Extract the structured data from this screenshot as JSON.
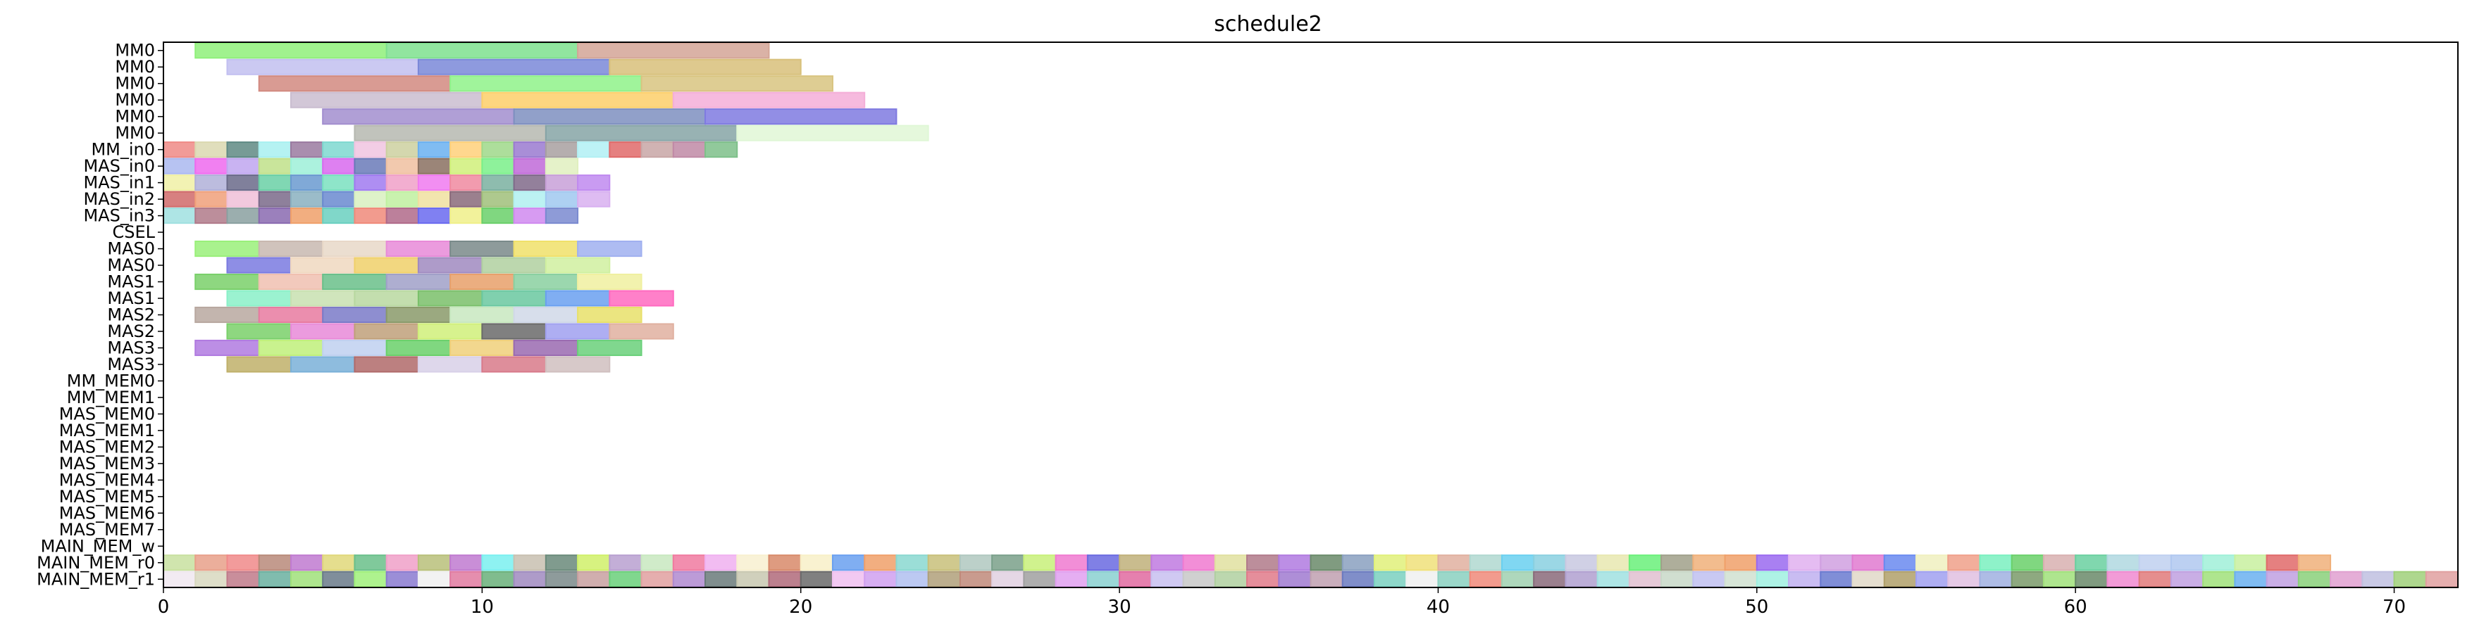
{
  "chart_data": {
    "type": "gantt",
    "title": "schedule2",
    "xlabel": "",
    "ylabel": "",
    "xlim": [
      0,
      72
    ],
    "x_ticks": [
      0,
      10,
      20,
      30,
      40,
      50,
      60,
      70
    ],
    "grid": false,
    "legend": "none",
    "rows": [
      "MM0",
      "MM0",
      "MM0",
      "MM0",
      "MM0",
      "MM0",
      "MM_in0",
      "MAS_in0",
      "MAS_in1",
      "MAS_in2",
      "MAS_in3",
      "CSEL",
      "MAS0",
      "MAS0",
      "MAS1",
      "MAS1",
      "MAS2",
      "MAS2",
      "MAS3",
      "MAS3",
      "MM_MEM0",
      "MM_MEM1",
      "MAS_MEM0",
      "MAS_MEM1",
      "MAS_MEM2",
      "MAS_MEM3",
      "MAS_MEM4",
      "MAS_MEM5",
      "MAS_MEM6",
      "MAS_MEM7",
      "MAIN_MEM_w",
      "MAIN_MEM_r0",
      "MAIN_MEM_r1"
    ],
    "bars": [
      {
        "row": 0,
        "start": 1,
        "end": 7,
        "color": "#8ff07a"
      },
      {
        "row": 0,
        "start": 7,
        "end": 13,
        "color": "#7ee08e"
      },
      {
        "row": 0,
        "start": 13,
        "end": 19,
        "color": "#d4a597"
      },
      {
        "row": 1,
        "start": 2,
        "end": 8,
        "color": "#c2bff0"
      },
      {
        "row": 1,
        "start": 8,
        "end": 14,
        "color": "#7a88d8"
      },
      {
        "row": 1,
        "start": 14,
        "end": 20,
        "color": "#d8c07a"
      },
      {
        "row": 2,
        "start": 3,
        "end": 9,
        "color": "#d28a80"
      },
      {
        "row": 2,
        "start": 9,
        "end": 15,
        "color": "#8ff28a"
      },
      {
        "row": 2,
        "start": 15,
        "end": 21,
        "color": "#d8c480"
      },
      {
        "row": 3,
        "start": 4,
        "end": 10,
        "color": "#cabdd0"
      },
      {
        "row": 3,
        "start": 10,
        "end": 16,
        "color": "#fdcf6a"
      },
      {
        "row": 3,
        "start": 16,
        "end": 22,
        "color": "#f4aed8"
      },
      {
        "row": 4,
        "start": 5,
        "end": 11,
        "color": "#a28ecf"
      },
      {
        "row": 4,
        "start": 11,
        "end": 17,
        "color": "#7e8fc0"
      },
      {
        "row": 4,
        "start": 17,
        "end": 23,
        "color": "#7f7ae0"
      },
      {
        "row": 5,
        "start": 6,
        "end": 12,
        "color": "#b6b8b0"
      },
      {
        "row": 5,
        "start": 12,
        "end": 18,
        "color": "#86a4a6"
      },
      {
        "row": 5,
        "start": 18,
        "end": 24,
        "color": "#e0f7d6"
      },
      {
        "row": 6,
        "start": 0,
        "end": 1,
        "color": "#ef8a86"
      },
      {
        "row": 6,
        "start": 1,
        "end": 2,
        "color": "#dad8b0"
      },
      {
        "row": 6,
        "start": 2,
        "end": 3,
        "color": "#5f8a84"
      },
      {
        "row": 6,
        "start": 3,
        "end": 4,
        "color": "#a8f0f0"
      },
      {
        "row": 6,
        "start": 4,
        "end": 5,
        "color": "#9a7aa0"
      },
      {
        "row": 6,
        "start": 5,
        "end": 6,
        "color": "#7ed8d0"
      },
      {
        "row": 6,
        "start": 6,
        "end": 7,
        "color": "#f0c4e0"
      },
      {
        "row": 6,
        "start": 7,
        "end": 8,
        "color": "#ccd0a0"
      },
      {
        "row": 6,
        "start": 8,
        "end": 9,
        "color": "#6ab0f0"
      },
      {
        "row": 6,
        "start": 9,
        "end": 10,
        "color": "#ffd07a"
      },
      {
        "row": 6,
        "start": 10,
        "end": 11,
        "color": "#9fd88a"
      },
      {
        "row": 6,
        "start": 11,
        "end": 12,
        "color": "#9a7ad0"
      },
      {
        "row": 6,
        "start": 12,
        "end": 13,
        "color": "#a8a0a0"
      },
      {
        "row": 6,
        "start": 13,
        "end": 14,
        "color": "#b2f0f4"
      },
      {
        "row": 6,
        "start": 14,
        "end": 15,
        "color": "#e06a6a"
      },
      {
        "row": 6,
        "start": 15,
        "end": 16,
        "color": "#c8a6a6"
      },
      {
        "row": 6,
        "start": 16,
        "end": 17,
        "color": "#c08aa6"
      },
      {
        "row": 6,
        "start": 17,
        "end": 18,
        "color": "#7ec08a"
      },
      {
        "row": 7,
        "start": 0,
        "end": 1,
        "color": "#aab8f0"
      },
      {
        "row": 7,
        "start": 1,
        "end": 2,
        "color": "#ef6aef"
      },
      {
        "row": 7,
        "start": 2,
        "end": 3,
        "color": "#c0a6f0"
      },
      {
        "row": 7,
        "start": 3,
        "end": 4,
        "color": "#c0e08a"
      },
      {
        "row": 7,
        "start": 4,
        "end": 5,
        "color": "#9ef0d8"
      },
      {
        "row": 7,
        "start": 5,
        "end": 6,
        "color": "#d86aef"
      },
      {
        "row": 7,
        "start": 6,
        "end": 7,
        "color": "#6a7ab8"
      },
      {
        "row": 7,
        "start": 7,
        "end": 8,
        "color": "#f0c0a0"
      },
      {
        "row": 7,
        "start": 8,
        "end": 9,
        "color": "#8a7060"
      },
      {
        "row": 7,
        "start": 9,
        "end": 10,
        "color": "#d0f07a"
      },
      {
        "row": 7,
        "start": 10,
        "end": 11,
        "color": "#7af08a"
      },
      {
        "row": 7,
        "start": 11,
        "end": 12,
        "color": "#c06ad8"
      },
      {
        "row": 7,
        "start": 12,
        "end": 13,
        "color": "#e0f0c0"
      },
      {
        "row": 8,
        "start": 0,
        "end": 1,
        "color": "#f0f0a6"
      },
      {
        "row": 8,
        "start": 1,
        "end": 2,
        "color": "#b0b0d8"
      },
      {
        "row": 8,
        "start": 2,
        "end": 3,
        "color": "#6a6a8a"
      },
      {
        "row": 8,
        "start": 3,
        "end": 4,
        "color": "#6ad0a6"
      },
      {
        "row": 8,
        "start": 4,
        "end": 5,
        "color": "#6a9ad0"
      },
      {
        "row": 8,
        "start": 5,
        "end": 6,
        "color": "#7ae0c0"
      },
      {
        "row": 8,
        "start": 6,
        "end": 7,
        "color": "#a07af0"
      },
      {
        "row": 8,
        "start": 7,
        "end": 8,
        "color": "#f0a0c8"
      },
      {
        "row": 8,
        "start": 8,
        "end": 9,
        "color": "#f07af0"
      },
      {
        "row": 8,
        "start": 9,
        "end": 10,
        "color": "#f08aa0"
      },
      {
        "row": 8,
        "start": 10,
        "end": 11,
        "color": "#7ab0a0"
      },
      {
        "row": 8,
        "start": 11,
        "end": 12,
        "color": "#806a8a"
      },
      {
        "row": 8,
        "start": 12,
        "end": 13,
        "color": "#c8a0d8"
      },
      {
        "row": 8,
        "start": 13,
        "end": 14,
        "color": "#c08af0"
      },
      {
        "row": 9,
        "start": 0,
        "end": 1,
        "color": "#d06a6a"
      },
      {
        "row": 9,
        "start": 1,
        "end": 2,
        "color": "#f0a07a"
      },
      {
        "row": 9,
        "start": 2,
        "end": 3,
        "color": "#f0c0d8"
      },
      {
        "row": 9,
        "start": 3,
        "end": 4,
        "color": "#7a6a8a"
      },
      {
        "row": 9,
        "start": 4,
        "end": 5,
        "color": "#8ab0c0"
      },
      {
        "row": 9,
        "start": 5,
        "end": 6,
        "color": "#6a8ad0"
      },
      {
        "row": 9,
        "start": 6,
        "end": 7,
        "color": "#d8f0c0"
      },
      {
        "row": 9,
        "start": 7,
        "end": 8,
        "color": "#c0f0a0"
      },
      {
        "row": 9,
        "start": 8,
        "end": 9,
        "color": "#f0e0a0"
      },
      {
        "row": 9,
        "start": 9,
        "end": 10,
        "color": "#8a6a7a"
      },
      {
        "row": 9,
        "start": 10,
        "end": 11,
        "color": "#a0c07a"
      },
      {
        "row": 9,
        "start": 11,
        "end": 12,
        "color": "#b0f0f0"
      },
      {
        "row": 9,
        "start": 12,
        "end": 13,
        "color": "#a0c8f0"
      },
      {
        "row": 9,
        "start": 13,
        "end": 14,
        "color": "#d8b0f0"
      },
      {
        "row": 10,
        "start": 0,
        "end": 1,
        "color": "#a0e0e0"
      },
      {
        "row": 10,
        "start": 1,
        "end": 2,
        "color": "#b07a8a"
      },
      {
        "row": 10,
        "start": 2,
        "end": 3,
        "color": "#8aa0a0"
      },
      {
        "row": 10,
        "start": 3,
        "end": 4,
        "color": "#8a6ab0"
      },
      {
        "row": 10,
        "start": 4,
        "end": 5,
        "color": "#f0a06a"
      },
      {
        "row": 10,
        "start": 5,
        "end": 6,
        "color": "#6ad0c0"
      },
      {
        "row": 10,
        "start": 6,
        "end": 7,
        "color": "#f08a7a"
      },
      {
        "row": 10,
        "start": 7,
        "end": 8,
        "color": "#b06a8a"
      },
      {
        "row": 10,
        "start": 8,
        "end": 9,
        "color": "#6a6af0"
      },
      {
        "row": 10,
        "start": 9,
        "end": 10,
        "color": "#f0f08a"
      },
      {
        "row": 10,
        "start": 10,
        "end": 11,
        "color": "#6ad06a"
      },
      {
        "row": 10,
        "start": 11,
        "end": 12,
        "color": "#d08af0"
      },
      {
        "row": 10,
        "start": 12,
        "end": 13,
        "color": "#7a8ad0"
      },
      {
        "row": 12,
        "start": 1,
        "end": 3,
        "color": "#9af07a"
      },
      {
        "row": 12,
        "start": 3,
        "end": 5,
        "color": "#c8b8b0"
      },
      {
        "row": 12,
        "start": 5,
        "end": 7,
        "color": "#e8d8c8"
      },
      {
        "row": 12,
        "start": 7,
        "end": 9,
        "color": "#e88ad8"
      },
      {
        "row": 12,
        "start": 9,
        "end": 11,
        "color": "#7a8a8a"
      },
      {
        "row": 12,
        "start": 11,
        "end": 13,
        "color": "#f0e06a"
      },
      {
        "row": 12,
        "start": 13,
        "end": 15,
        "color": "#a0b0f0"
      },
      {
        "row": 13,
        "start": 2,
        "end": 4,
        "color": "#7a7ae0"
      },
      {
        "row": 13,
        "start": 4,
        "end": 6,
        "color": "#f0d8c0"
      },
      {
        "row": 13,
        "start": 6,
        "end": 8,
        "color": "#f0d06a"
      },
      {
        "row": 13,
        "start": 8,
        "end": 10,
        "color": "#a08ac0"
      },
      {
        "row": 13,
        "start": 10,
        "end": 12,
        "color": "#b0d0a0"
      },
      {
        "row": 13,
        "start": 12,
        "end": 14,
        "color": "#d0f0a0"
      },
      {
        "row": 14,
        "start": 1,
        "end": 3,
        "color": "#7ad06a"
      },
      {
        "row": 14,
        "start": 3,
        "end": 5,
        "color": "#f0c0b0"
      },
      {
        "row": 14,
        "start": 5,
        "end": 7,
        "color": "#6ac08a"
      },
      {
        "row": 14,
        "start": 7,
        "end": 9,
        "color": "#a0a0c8"
      },
      {
        "row": 14,
        "start": 9,
        "end": 11,
        "color": "#e8a06a"
      },
      {
        "row": 14,
        "start": 11,
        "end": 13,
        "color": "#8ad0a0"
      },
      {
        "row": 14,
        "start": 13,
        "end": 15,
        "color": "#f0f0a0"
      },
      {
        "row": 15,
        "start": 2,
        "end": 4,
        "color": "#8af0c8"
      },
      {
        "row": 15,
        "start": 4,
        "end": 6,
        "color": "#c8e0b0"
      },
      {
        "row": 15,
        "start": 6,
        "end": 8,
        "color": "#b8d8a0"
      },
      {
        "row": 15,
        "start": 8,
        "end": 10,
        "color": "#7ac06a"
      },
      {
        "row": 15,
        "start": 10,
        "end": 12,
        "color": "#6ac8a0"
      },
      {
        "row": 15,
        "start": 12,
        "end": 14,
        "color": "#6aa0f0"
      },
      {
        "row": 15,
        "start": 14,
        "end": 16,
        "color": "#ff6ac0"
      },
      {
        "row": 16,
        "start": 1,
        "end": 3,
        "color": "#b8a8a0"
      },
      {
        "row": 16,
        "start": 3,
        "end": 5,
        "color": "#e87aa0"
      },
      {
        "row": 16,
        "start": 5,
        "end": 7,
        "color": "#7a7ac8"
      },
      {
        "row": 16,
        "start": 7,
        "end": 9,
        "color": "#8a9a6a"
      },
      {
        "row": 16,
        "start": 9,
        "end": 11,
        "color": "#c8e8c0"
      },
      {
        "row": 16,
        "start": 11,
        "end": 13,
        "color": "#d0d8e8"
      },
      {
        "row": 16,
        "start": 13,
        "end": 15,
        "color": "#e8e06a"
      },
      {
        "row": 17,
        "start": 2,
        "end": 4,
        "color": "#7ad06a"
      },
      {
        "row": 17,
        "start": 4,
        "end": 6,
        "color": "#e88ad8"
      },
      {
        "row": 17,
        "start": 6,
        "end": 8,
        "color": "#c0a07a"
      },
      {
        "row": 17,
        "start": 8,
        "end": 10,
        "color": "#d0f07a"
      },
      {
        "row": 17,
        "start": 10,
        "end": 12,
        "color": "#6a6a6a"
      },
      {
        "row": 17,
        "start": 12,
        "end": 14,
        "color": "#a0a0f0"
      },
      {
        "row": 17,
        "start": 14,
        "end": 16,
        "color": "#e0b0a0"
      },
      {
        "row": 18,
        "start": 1,
        "end": 3,
        "color": "#b07ae0"
      },
      {
        "row": 18,
        "start": 3,
        "end": 5,
        "color": "#c0f07a"
      },
      {
        "row": 18,
        "start": 5,
        "end": 7,
        "color": "#c0d0f0"
      },
      {
        "row": 18,
        "start": 7,
        "end": 9,
        "color": "#6ad06a"
      },
      {
        "row": 18,
        "start": 9,
        "end": 11,
        "color": "#f0d07a"
      },
      {
        "row": 18,
        "start": 11,
        "end": 13,
        "color": "#9a6ab0"
      },
      {
        "row": 18,
        "start": 13,
        "end": 15,
        "color": "#6ad07a"
      },
      {
        "row": 19,
        "start": 2,
        "end": 4,
        "color": "#c0b06a"
      },
      {
        "row": 19,
        "start": 4,
        "end": 6,
        "color": "#7ab0d8"
      },
      {
        "row": 19,
        "start": 6,
        "end": 8,
        "color": "#b06a6a"
      },
      {
        "row": 19,
        "start": 8,
        "end": 10,
        "color": "#d8d0e8"
      },
      {
        "row": 19,
        "start": 10,
        "end": 12,
        "color": "#d87a8a"
      },
      {
        "row": 19,
        "start": 12,
        "end": 14,
        "color": "#d0c0c0"
      }
    ],
    "stripe_rows": [
      {
        "row": 31,
        "start": 0,
        "step": 1,
        "colors": [
          "#c8e0a0",
          "#e8a08a",
          "#f08a8a",
          "#b88a7a",
          "#c07ad0",
          "#e0d87a",
          "#6ac08a",
          "#f0a0c8",
          "#b8c07a",
          "#c07ad0",
          "#7af0f0",
          "#c8c0b0",
          "#6a8a7a",
          "#d0f06a",
          "#b8a0d0",
          "#c8e8c0",
          "#f07aa0",
          "#f0b0f0",
          "#f8f0d0",
          "#d88a6a",
          "#f8f0c8",
          "#6aa0f0",
          "#f0a06a",
          "#8ad8d0",
          "#c8c07a",
          "#b0c8c0",
          "#7aa08a",
          "#c8f07a",
          "#f07ad0",
          "#6a6ae0",
          "#c0b07a",
          "#c07ae0",
          "#f07ad0",
          "#e0e0a0",
          "#b07a8a",
          "#b07ae0",
          "#6a8a6a",
          "#8aa0c0",
          "#e0f07a",
          "#f0e07a",
          "#e0b0a0",
          "#b0d8d0",
          "#6ad0f0",
          "#8ad0e0",
          "#c8c8e0",
          "#e8e8b0",
          "#6af07a",
          "#a0a08a",
          "#f0b07a",
          "#f0a06a",
          "#9a6af0",
          "#e0b0f0",
          "#d0a0e0",
          "#e07ad0",
          "#6a8af0",
          "#f0f0c0",
          "#f0a08a",
          "#7af0c0",
          "#6ad06a",
          "#d8b0b0",
          "#6ad0a0",
          "#b0d8e0",
          "#c0d0f0",
          "#b0c8f0",
          "#a0f0d8",
          "#c8f0a0",
          "#e06a6a",
          "#f0b07a"
        ]
      },
      {
        "row": 32,
        "start": 0,
        "step": 1,
        "colors": [
          "#f0e8f0",
          "#d8d8c0",
          "#c07a8a",
          "#6ab0a0",
          "#a0e07a",
          "#6a7a8a",
          "#a0f07a",
          "#8a7ad0",
          "#f0f0f0",
          "#e07aa0",
          "#6ab07a",
          "#a08ac0",
          "#7a8a8a",
          "#c8a0a0",
          "#6ad07a",
          "#e0a0a0",
          "#b08ad0",
          "#6a7a7a",
          "#c8c8b0",
          "#b06a7a",
          "#6a6a6a",
          "#f0c0f0",
          "#d0a0f0",
          "#b0c0f0",
          "#b0a07a",
          "#c08a7a",
          "#e0d0e0",
          "#a0a0a0",
          "#e0a0f0",
          "#8ad0d0",
          "#e06aa0",
          "#c8c0f0",
          "#c8c8c8",
          "#b0d0a0",
          "#e07a8a",
          "#a07ad0",
          "#c0a0b0",
          "#6a7ac0",
          "#7ad0c0",
          "#f0f0f0",
          "#8ad0c0",
          "#f08a7a",
          "#a0d0b0",
          "#8a6a7a",
          "#b0a0d0",
          "#a0e0e0",
          "#e0c0d0",
          "#c8d8c8",
          "#c0c0f0",
          "#d0e0d0",
          "#a0f0e0",
          "#c0b0f0",
          "#6a7ad0",
          "#e0d8c8",
          "#b0a06a",
          "#a0a0f0",
          "#e0c0e0",
          "#a0b0e0",
          "#7a9a6a",
          "#a0e07a",
          "#6a8a6a",
          "#f08ad0",
          "#e07a7a",
          "#c0a0e0",
          "#a0e07a",
          "#6ab0f0",
          "#c0a0e0",
          "#8ad07a",
          "#e0a0d0",
          "#c0c0e0",
          "#a0d07a",
          "#e0a0a0"
        ]
      }
    ]
  }
}
